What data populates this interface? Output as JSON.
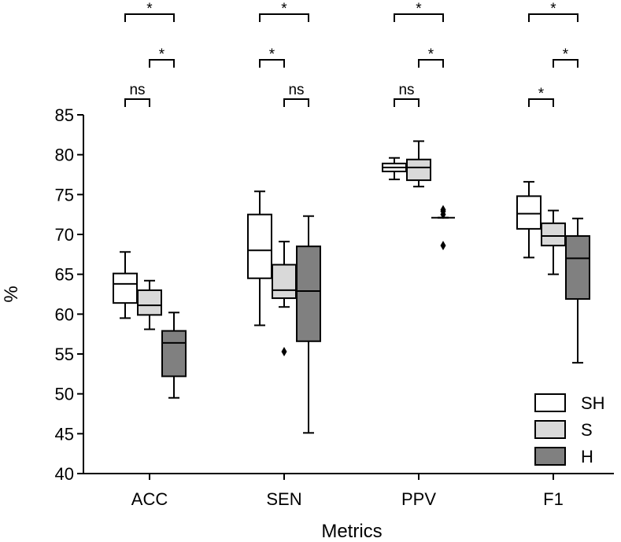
{
  "chart_data": {
    "type": "box",
    "xlabel": "Metrics",
    "ylabel": "%",
    "ylim": [
      40,
      85
    ],
    "yticks": [
      40,
      45,
      50,
      55,
      60,
      65,
      70,
      75,
      80,
      85
    ],
    "categories": [
      "ACC",
      "SEN",
      "PPV",
      "F1"
    ],
    "series": [
      {
        "name": "SH",
        "color": "#ffffff",
        "boxes": [
          {
            "whislo": 59.5,
            "q1": 61.4,
            "med": 63.8,
            "q3": 65.1,
            "whishi": 67.8,
            "fliers": []
          },
          {
            "whislo": 58.6,
            "q1": 64.5,
            "med": 68.0,
            "q3": 72.5,
            "whishi": 75.4,
            "fliers": []
          },
          {
            "whislo": 76.9,
            "q1": 77.9,
            "med": 78.4,
            "q3": 78.9,
            "whishi": 79.6,
            "fliers": []
          },
          {
            "whislo": 67.1,
            "q1": 70.7,
            "med": 72.6,
            "q3": 74.8,
            "whishi": 76.6,
            "fliers": []
          }
        ]
      },
      {
        "name": "S",
        "color": "#d9d9d9",
        "boxes": [
          {
            "whislo": 58.1,
            "q1": 59.9,
            "med": 61.1,
            "q3": 63.0,
            "whishi": 64.2,
            "fliers": []
          },
          {
            "whislo": 60.9,
            "q1": 62.0,
            "med": 63.0,
            "q3": 66.2,
            "whishi": 69.1,
            "fliers": [
              55.3
            ]
          },
          {
            "whislo": 76.0,
            "q1": 76.8,
            "med": 78.4,
            "q3": 79.4,
            "whishi": 81.7,
            "fliers": []
          },
          {
            "whislo": 65.0,
            "q1": 68.6,
            "med": 69.8,
            "q3": 71.4,
            "whishi": 73.0,
            "fliers": []
          }
        ]
      },
      {
        "name": "H",
        "color": "#808080",
        "boxes": [
          {
            "whislo": 49.5,
            "q1": 52.2,
            "med": 56.4,
            "q3": 57.9,
            "whishi": 60.2,
            "fliers": []
          },
          {
            "whislo": 45.1,
            "q1": 56.6,
            "med": 62.9,
            "q3": 68.5,
            "whishi": 72.3,
            "fliers": []
          },
          {
            "whislo": 72.1,
            "q1": 72.1,
            "med": 72.1,
            "q3": 72.1,
            "whishi": 72.1,
            "fliers": [
              73.1,
              72.9,
              72.5,
              68.6
            ]
          },
          {
            "whislo": 53.9,
            "q1": 61.9,
            "med": 67.0,
            "q3": 69.8,
            "whishi": 72.0,
            "fliers": []
          }
        ]
      }
    ],
    "significance": [
      {
        "group": 0,
        "from": 0,
        "to": 2,
        "level": 0,
        "label": "*"
      },
      {
        "group": 0,
        "from": 1,
        "to": 2,
        "level": 1,
        "label": "*"
      },
      {
        "group": 0,
        "from": 0,
        "to": 1,
        "level": 2,
        "label": "ns"
      },
      {
        "group": 1,
        "from": 0,
        "to": 2,
        "level": 0,
        "label": "*"
      },
      {
        "group": 1,
        "from": 0,
        "to": 1,
        "level": 1,
        "label": "*"
      },
      {
        "group": 1,
        "from": 1,
        "to": 2,
        "level": 2,
        "label": "ns"
      },
      {
        "group": 2,
        "from": 0,
        "to": 2,
        "level": 0,
        "label": "*"
      },
      {
        "group": 2,
        "from": 1,
        "to": 2,
        "level": 1,
        "label": "*"
      },
      {
        "group": 2,
        "from": 0,
        "to": 1,
        "level": 2,
        "label": "ns"
      },
      {
        "group": 3,
        "from": 0,
        "to": 2,
        "level": 0,
        "label": "*"
      },
      {
        "group": 3,
        "from": 1,
        "to": 2,
        "level": 1,
        "label": "*"
      },
      {
        "group": 3,
        "from": 0,
        "to": 1,
        "level": 2,
        "label": "*"
      }
    ],
    "legend": {
      "position": "bottom-right",
      "entries": [
        {
          "label": "SH",
          "color": "#ffffff"
        },
        {
          "label": "S",
          "color": "#d9d9d9"
        },
        {
          "label": "H",
          "color": "#808080"
        }
      ]
    }
  }
}
